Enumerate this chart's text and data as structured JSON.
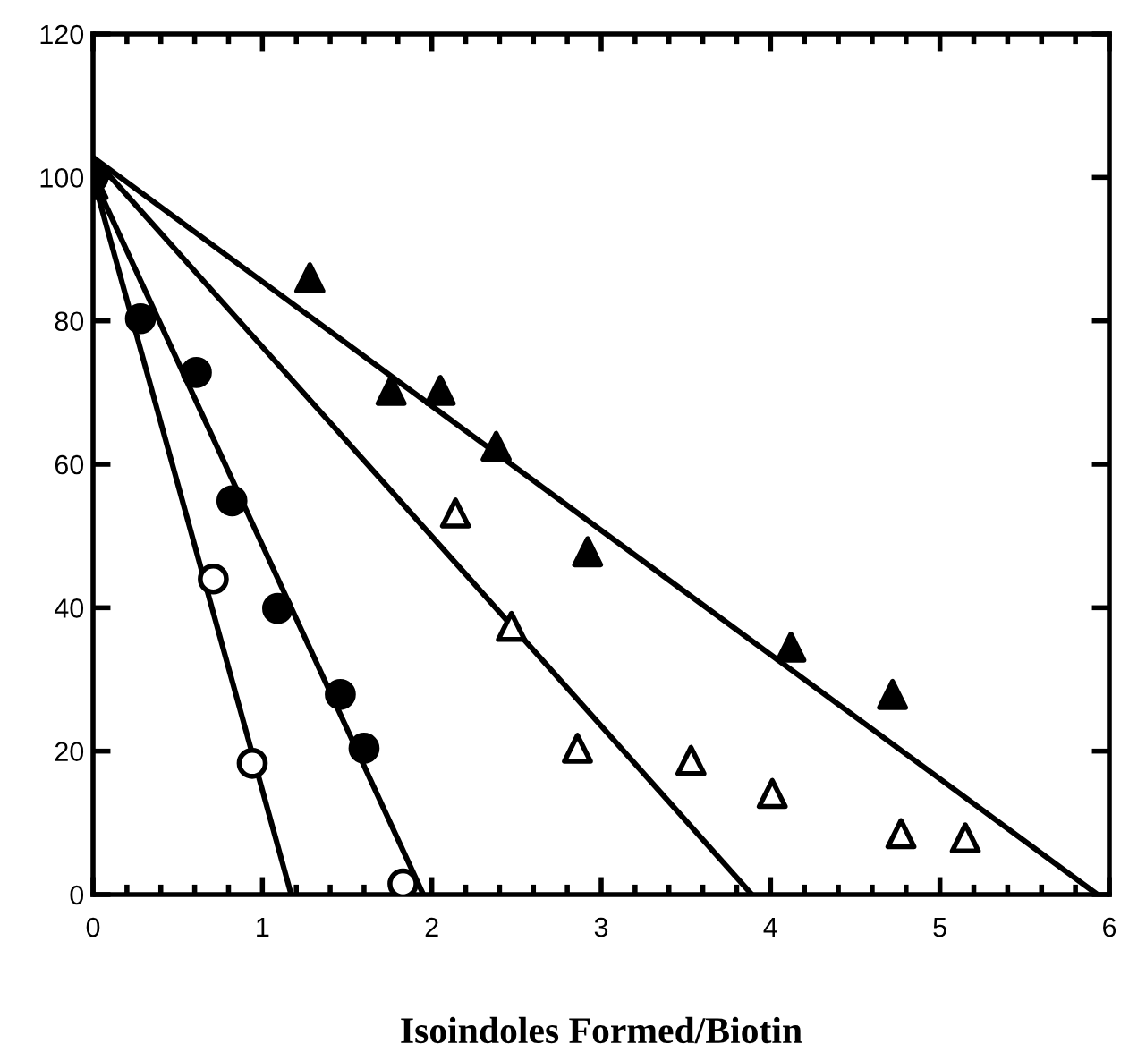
{
  "chart_data": {
    "type": "scatter",
    "xlabel": "Isoindoles Formed/Biotin",
    "xlim": [
      0,
      6
    ],
    "xticks": [
      0,
      1,
      2,
      3,
      4,
      5,
      6
    ],
    "ylim": [
      0,
      120
    ],
    "yticks": [
      0,
      20,
      40,
      60,
      80,
      100,
      120
    ],
    "grid": false,
    "series": [
      {
        "marker": "circle",
        "color": "#ffffff",
        "x": [
          0.71,
          0.94,
          1.83
        ],
        "values": [
          44,
          18.3,
          1.5
        ]
      },
      {
        "marker": "circle",
        "color": "#000000",
        "x": [
          0,
          0.28,
          0.61,
          0.82,
          1.09,
          1.46,
          1.6
        ],
        "values": [
          100,
          80.3,
          72.8,
          54.9,
          39.9,
          27.9,
          20.4
        ]
      },
      {
        "marker": "triangle",
        "color": "#ffffff",
        "x": [
          2.14,
          2.47,
          2.86,
          3.53,
          4.01,
          4.77,
          5.15
        ],
        "values": [
          53.2,
          37.4,
          20.4,
          18.7,
          14.1,
          8.5,
          7.9
        ]
      },
      {
        "marker": "triangle",
        "color": "#000000",
        "x": [
          0,
          1.28,
          1.76,
          2.05,
          2.38,
          2.92,
          4.12,
          4.72
        ],
        "values": [
          99,
          86,
          70.3,
          70.3,
          62.5,
          47.8,
          34.5,
          27.9
        ]
      },
      {
        "type": "line",
        "marker": "none",
        "line_style": "solid",
        "color": "#000000",
        "x": [
          0,
          1.17
        ],
        "values": [
          100,
          0
        ]
      },
      {
        "type": "line",
        "marker": "none",
        "line_style": "solid",
        "color": "#000000",
        "x": [
          0,
          1.95
        ],
        "values": [
          100,
          0
        ]
      },
      {
        "type": "line",
        "marker": "none",
        "line_style": "solid",
        "color": "#000000",
        "x": [
          0,
          3.89
        ],
        "values": [
          102.8,
          0
        ]
      },
      {
        "type": "line",
        "marker": "none",
        "line_style": "solid",
        "color": "#000000",
        "x": [
          0,
          5.93
        ],
        "values": [
          102.8,
          0
        ]
      }
    ]
  }
}
